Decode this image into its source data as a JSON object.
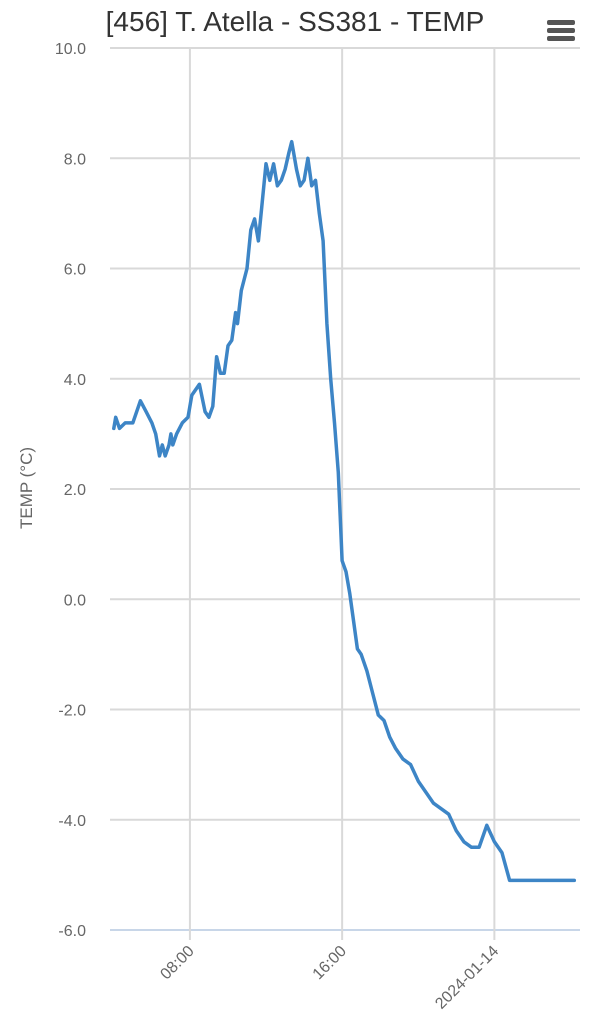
{
  "header": {
    "title": "[456] T. Atella - SS381 - TEMP",
    "menu_icon": "hamburger-menu-icon"
  },
  "colors": {
    "series": "#3d85c6",
    "grid": "#d9d9d9",
    "axis_text": "#666666",
    "title": "#333333"
  },
  "chart_data": {
    "type": "line",
    "title": "[456] T. Atella - SS381 - TEMP",
    "xlabel": "",
    "ylabel": "TEMP (°C)",
    "x_unit": "hours from 2024-01-13 00:00",
    "x_ticks": [
      {
        "x": 8,
        "label": "08:00"
      },
      {
        "x": 16,
        "label": "16:00"
      },
      {
        "x": 24,
        "label": "2024-01-14"
      }
    ],
    "y_ticks": [
      {
        "y": 10,
        "label": "10.0"
      },
      {
        "y": 8,
        "label": "8.0"
      },
      {
        "y": 6,
        "label": "6.0"
      },
      {
        "y": 4,
        "label": "4.0"
      },
      {
        "y": 2,
        "label": "2.0"
      },
      {
        "y": 0,
        "label": "0.0"
      },
      {
        "y": -2,
        "label": "-2.0"
      },
      {
        "y": -4,
        "label": "-4.0"
      },
      {
        "y": -6,
        "label": "-6.0"
      }
    ],
    "xlim": [
      3.8,
      28.5
    ],
    "ylim": [
      -6,
      10
    ],
    "grid": true,
    "legend": "none",
    "series": [
      {
        "x": [
          4.0,
          4.1,
          4.3,
          4.6,
          5.0,
          5.4,
          5.7,
          6.0,
          6.2,
          6.4,
          6.55,
          6.7,
          6.9,
          7.0,
          7.1,
          7.3,
          7.6,
          7.9,
          8.0,
          8.1,
          8.3,
          8.5,
          8.8,
          9.0,
          9.2,
          9.4,
          9.6,
          9.8,
          10.0,
          10.2,
          10.4,
          10.5,
          10.7,
          11.0,
          11.2,
          11.4,
          11.6,
          11.8,
          12.0,
          12.2,
          12.4,
          12.6,
          12.8,
          13.0,
          13.2,
          13.35,
          13.5,
          13.6,
          13.8,
          14.0,
          14.2,
          14.4,
          14.6,
          14.8,
          15.0,
          15.2,
          15.4,
          15.6,
          15.8,
          15.9,
          16.0,
          16.2,
          16.4,
          16.6,
          16.8,
          17.0,
          17.3,
          17.6,
          17.9,
          18.2,
          18.5,
          18.8,
          19.2,
          19.6,
          20.0,
          20.4,
          20.8,
          21.2,
          21.6,
          22.0,
          22.4,
          22.8,
          23.2,
          23.6,
          24.0,
          24.4,
          24.8,
          25.2,
          25.6,
          26.0,
          26.4,
          26.8,
          27.2,
          27.6,
          28.0,
          28.2
        ],
        "y": [
          3.1,
          3.3,
          3.1,
          3.2,
          3.2,
          3.6,
          3.4,
          3.2,
          3.0,
          2.6,
          2.8,
          2.6,
          2.8,
          3.0,
          2.8,
          3.0,
          3.2,
          3.3,
          3.5,
          3.7,
          3.8,
          3.9,
          3.4,
          3.3,
          3.5,
          4.4,
          4.1,
          4.1,
          4.6,
          4.7,
          5.2,
          5.0,
          5.6,
          6.0,
          6.7,
          6.9,
          6.5,
          7.2,
          7.9,
          7.6,
          7.9,
          7.5,
          7.6,
          7.8,
          8.1,
          8.3,
          8.0,
          7.8,
          7.5,
          7.6,
          8.0,
          7.5,
          7.6,
          7.0,
          6.5,
          5.0,
          4.0,
          3.2,
          2.3,
          1.5,
          0.7,
          0.5,
          0.1,
          -0.4,
          -0.9,
          -1.0,
          -1.3,
          -1.7,
          -2.1,
          -2.2,
          -2.5,
          -2.7,
          -2.9,
          -3.0,
          -3.3,
          -3.5,
          -3.7,
          -3.8,
          -3.9,
          -4.2,
          -4.4,
          -4.5,
          -4.5,
          -4.1,
          -4.4,
          -4.6,
          -5.1,
          -5.1,
          -5.1,
          -5.1,
          -5.1,
          -5.1,
          -5.1,
          -5.1,
          -5.1,
          -5.1
        ]
      }
    ]
  }
}
